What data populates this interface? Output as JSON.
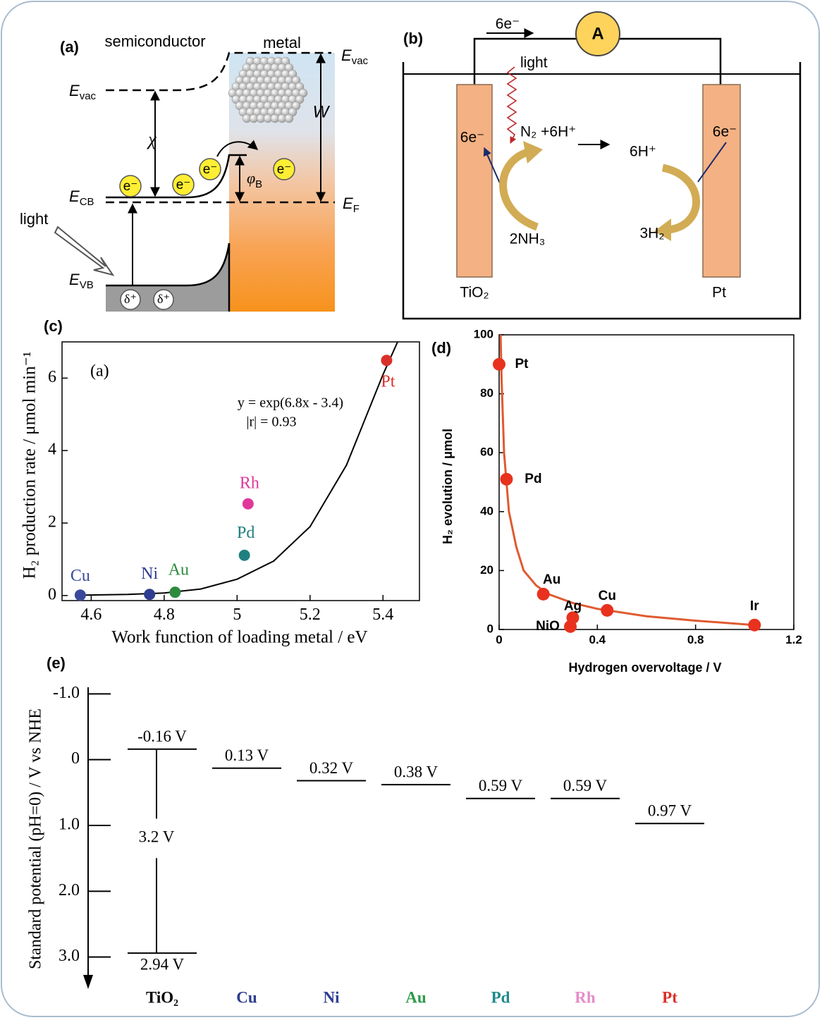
{
  "panel_a": {
    "label": "(a)",
    "semiconductor": "semiconductor",
    "metal": "metal",
    "evac_metal": [
      "E",
      "vac"
    ],
    "evac_sc": [
      "E",
      "vac"
    ],
    "chi": "χ",
    "w": "W",
    "phi_b": [
      "φ",
      "B"
    ],
    "ecb": [
      "E",
      "CB"
    ],
    "ef": [
      "E",
      "F"
    ],
    "evb": [
      "E",
      "VB"
    ],
    "light": "light",
    "electrons": [
      "e⁻",
      "e⁻",
      "e⁻",
      "e⁻"
    ],
    "holes": [
      "δ⁺",
      "δ⁺"
    ]
  },
  "panel_b": {
    "label": "(b)",
    "current": "6e⁻",
    "ammeter": "A",
    "light": "light",
    "reactants": "N₂ +6H⁺",
    "electrons_left": "6e⁻",
    "protons": "6H⁺",
    "electrons_right": "6e⁻",
    "nh3": "2NH₃",
    "h2": "3H₂",
    "anode": "TiO₂",
    "cathode": "Pt"
  },
  "chart_data": [
    {
      "type": "scatter",
      "panel": "(c)",
      "inset_label": "(a)",
      "annotations": [
        "y = exp(6.8x - 3.4)",
        "|r| = 0.93"
      ],
      "xlabel": "Work function of loading metal / eV",
      "ylabel": "H₂ production rate / μmol min⁻¹",
      "categories": [
        "Cu",
        "Ni",
        "Au",
        "Pd",
        "Rh",
        "Pt"
      ],
      "x": [
        4.57,
        4.76,
        4.83,
        5.02,
        5.03,
        5.41
      ],
      "values": [
        0.01,
        0.03,
        0.09,
        1.11,
        2.53,
        6.49
      ],
      "colors": [
        "#3a4a9a",
        "#2e3d8f",
        "#2e8b3e",
        "#1f8080",
        "#e0389a",
        "#d9302b"
      ],
      "fit": {
        "x": [
          4.57,
          4.7,
          4.8,
          4.9,
          5.0,
          5.1,
          5.2,
          5.3,
          5.4,
          5.44
        ],
        "values": [
          0.01,
          0.03,
          0.07,
          0.18,
          0.45,
          0.95,
          1.9,
          3.6,
          6.1,
          7.0
        ],
        "color": "#000000"
      },
      "xlim": [
        4.52,
        5.5
      ],
      "ylim": [
        -0.14,
        7
      ],
      "xticks": [
        4.6,
        4.8,
        5,
        5.2,
        5.4
      ],
      "yticks": [
        0,
        2,
        4,
        6
      ]
    },
    {
      "type": "scatter",
      "panel": "(d)",
      "xlabel": "Hydrogen overvoltage / V",
      "ylabel": "H₂ evolution / μmol",
      "categories": [
        "Pt",
        "Pd",
        "Au",
        "Ag",
        "NiO",
        "Cu",
        "Ir"
      ],
      "x": [
        0,
        0.03,
        0.18,
        0.3,
        0.29,
        0.44,
        1.04
      ],
      "values": [
        90,
        51,
        12,
        4,
        1,
        6.5,
        1.5
      ],
      "color": "#e8321e",
      "fit": {
        "x": [
          0.006,
          0.01,
          0.02,
          0.04,
          0.07,
          0.1,
          0.15,
          0.2,
          0.3,
          0.4,
          0.6,
          0.8,
          1.04
        ],
        "values": [
          100,
          85,
          60,
          40,
          28,
          20,
          15,
          12,
          9,
          7,
          4.5,
          3,
          1.5
        ],
        "color": "#e05a30"
      },
      "xlim": [
        0,
        1.2
      ],
      "ylim": [
        0,
        100
      ],
      "xticks": [
        0,
        0.4,
        0.8,
        1.2
      ],
      "yticks": [
        0,
        20,
        40,
        60,
        80,
        100
      ]
    },
    {
      "type": "level",
      "panel": "(e)",
      "ylabel": "Standard potential (pH=0) / V vs NHE",
      "categories": [
        "TiO₂",
        "Cu",
        "Ni",
        "Au",
        "Pd",
        "Rh",
        "Pt"
      ],
      "colors": [
        "#000000",
        "#2e3d8f",
        "#2e3d8f",
        "#2e9a4a",
        "#1f8a8a",
        "#e58cc8",
        "#d9302b"
      ],
      "values": [
        -0.16,
        0.13,
        0.32,
        0.38,
        0.59,
        0.59,
        0.97
      ],
      "value_labels": [
        "-0.16 V",
        "0.13 V",
        "0.32 V",
        "0.38 V",
        "0.59 V",
        "0.59 V",
        "0.97 V"
      ],
      "valence": {
        "value": 2.94,
        "label": "2.94 V"
      },
      "band_gap": "3.2 V",
      "ylim": [
        -1.1,
        3.4
      ],
      "inverted": true,
      "yticks": [
        {
          "value": -1,
          "label": "-1.0"
        },
        0,
        {
          "value": 1,
          "label": "1.0"
        },
        {
          "value": 2,
          "label": "2.0"
        },
        {
          "value": 3,
          "label": "3.0"
        }
      ]
    }
  ]
}
